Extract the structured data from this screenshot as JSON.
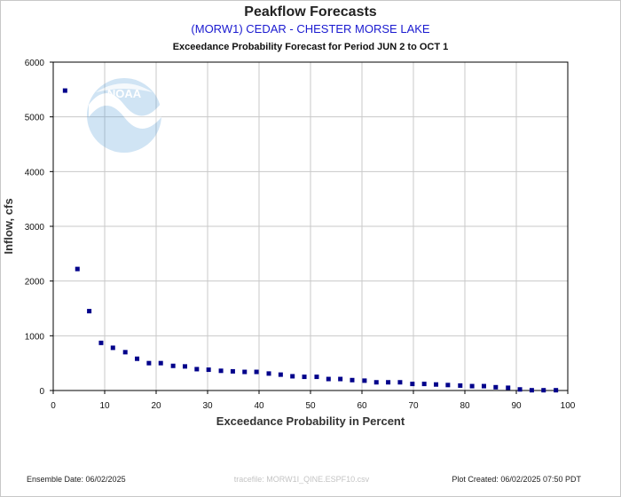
{
  "chart_data": {
    "type": "scatter",
    "title": "Peakflow Forecasts",
    "subtitle": "(MORW1) CEDAR - CHESTER MORSE LAKE",
    "period_text": "Exceedance Probability Forecast for Period JUN 2 to OCT 1",
    "xlabel": "Exceedance Probability in Percent",
    "ylabel": "Inflow, cfs",
    "xlim": [
      0,
      100
    ],
    "ylim": [
      0,
      6000
    ],
    "x_ticks": [
      0,
      10,
      20,
      30,
      40,
      50,
      60,
      70,
      80,
      90,
      100
    ],
    "y_ticks": [
      0,
      1000,
      2000,
      3000,
      4000,
      5000,
      6000
    ],
    "grid": true,
    "series": [
      {
        "color": "#00008b",
        "points": [
          [
            2.3,
            5480
          ],
          [
            4.7,
            2220
          ],
          [
            7.0,
            1450
          ],
          [
            9.3,
            870
          ],
          [
            11.6,
            780
          ],
          [
            14.0,
            700
          ],
          [
            16.3,
            580
          ],
          [
            18.6,
            500
          ],
          [
            20.9,
            500
          ],
          [
            23.3,
            450
          ],
          [
            25.6,
            440
          ],
          [
            27.9,
            390
          ],
          [
            30.2,
            380
          ],
          [
            32.6,
            360
          ],
          [
            34.9,
            350
          ],
          [
            37.2,
            340
          ],
          [
            39.5,
            340
          ],
          [
            41.9,
            310
          ],
          [
            44.2,
            290
          ],
          [
            46.5,
            260
          ],
          [
            48.8,
            250
          ],
          [
            51.2,
            250
          ],
          [
            53.5,
            210
          ],
          [
            55.8,
            210
          ],
          [
            58.1,
            190
          ],
          [
            60.5,
            180
          ],
          [
            62.8,
            150
          ],
          [
            65.1,
            150
          ],
          [
            67.4,
            150
          ],
          [
            69.8,
            120
          ],
          [
            72.1,
            120
          ],
          [
            74.4,
            110
          ],
          [
            76.7,
            100
          ],
          [
            79.1,
            90
          ],
          [
            81.4,
            80
          ],
          [
            83.7,
            80
          ],
          [
            86.0,
            60
          ],
          [
            88.4,
            50
          ],
          [
            90.7,
            20
          ],
          [
            93.0,
            5
          ],
          [
            95.3,
            5
          ],
          [
            97.7,
            5
          ]
        ]
      }
    ]
  },
  "footer": {
    "ensemble_date": "Ensemble Date: 06/02/2025",
    "tracefile": "tracefile: MORW1I_QINE.ESPF10.csv",
    "plot_created": "Plot Created: 06/02/2025 07:50 PDT"
  },
  "logo": {
    "text": "NOAA",
    "icon": "noaa-logo-icon",
    "color": "#5aa0d8"
  }
}
